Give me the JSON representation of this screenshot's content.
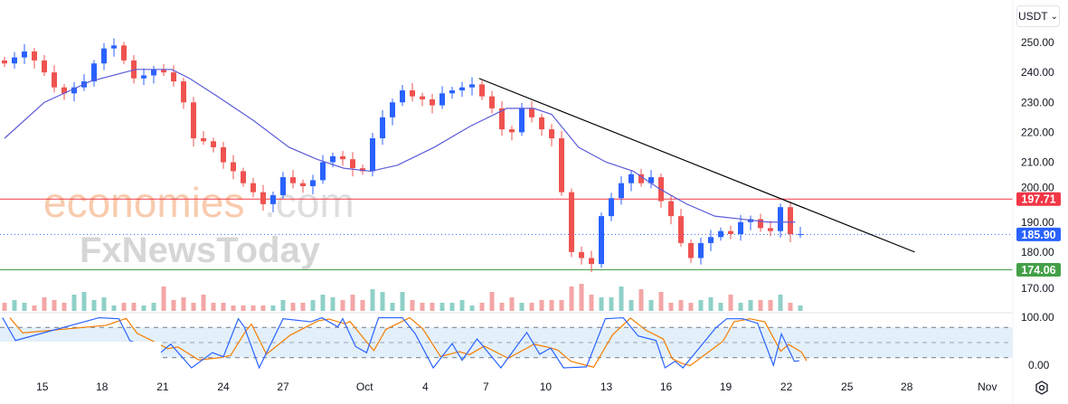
{
  "currency_selector": {
    "label": "USDT",
    "chevron": "⌄"
  },
  "watermark": {
    "part1": "economies",
    "part2": ".com",
    "part3": "FxNewsToday"
  },
  "price_tags": {
    "resistance": {
      "value": "197.71",
      "color": "#f23645"
    },
    "current": {
      "value": "185.90",
      "color": "#2962ff"
    },
    "support": {
      "value": "174.06",
      "color": "#43a047"
    }
  },
  "colors": {
    "up": "#2962ff",
    "down": "#ef5350",
    "ma": "#5b5bd9",
    "trendline": "#000000",
    "stoch_k": "#2962ff",
    "stoch_d": "#f57c00",
    "vol_up": "#8fd0c8",
    "vol_down": "#f3a6a6",
    "band": "#e3f0fb"
  },
  "chart_data": {
    "type": "candlestick",
    "price_axis": {
      "ticks": [
        "250.00",
        "240.00",
        "230.00",
        "220.00",
        "210.00",
        "200.00",
        "190.00",
        "180.00",
        "170.00"
      ],
      "values": [
        250,
        240,
        230,
        220,
        210,
        200,
        190,
        180,
        170
      ],
      "range": [
        170,
        250
      ]
    },
    "time_axis": {
      "ticks": [
        "15",
        "18",
        "21",
        "24",
        "27",
        "Oct",
        "4",
        "7",
        "10",
        "13",
        "16",
        "19",
        "22",
        "25",
        "28",
        "Nov"
      ],
      "tick_candle_index": [
        3.8,
        9.8,
        15.9,
        22,
        28,
        36.2,
        42.3,
        48.4,
        54.4,
        60.5,
        66.5,
        72.5,
        78.6,
        84.7,
        90.7,
        98.8
      ]
    },
    "closes": [
      243,
      245,
      247,
      244,
      240,
      235,
      233,
      235,
      237,
      243,
      248,
      249,
      244,
      238,
      239,
      241,
      240,
      237,
      230,
      218,
      217,
      215,
      210,
      207,
      203,
      200,
      196,
      199,
      205,
      203,
      202,
      204,
      210,
      212,
      211,
      208,
      207,
      218,
      225,
      230,
      234,
      232,
      231,
      229,
      233,
      234,
      235,
      236,
      232,
      228,
      221,
      220,
      228,
      225,
      221,
      218,
      200,
      180,
      178,
      176,
      192,
      198,
      203,
      206,
      203,
      205,
      197,
      192,
      183,
      178,
      183,
      185,
      187,
      186,
      190,
      191,
      188,
      187,
      195,
      186,
      186
    ],
    "volume": [
      3,
      4,
      3,
      2,
      5,
      4,
      3,
      6,
      7,
      4,
      5,
      2,
      3,
      3,
      2,
      3,
      9,
      4,
      5,
      3,
      6,
      3,
      3,
      2,
      2,
      2,
      2,
      2,
      4,
      3,
      3,
      4,
      6,
      5,
      4,
      6,
      4,
      8,
      7,
      3,
      7,
      4,
      3,
      3,
      3,
      3,
      4,
      2,
      3,
      7,
      3,
      5,
      3,
      3,
      4,
      4,
      4,
      9,
      10,
      6,
      5,
      5,
      9,
      4,
      8,
      4,
      7,
      3,
      4,
      3,
      4,
      5,
      3,
      6,
      3,
      4,
      4,
      4,
      6,
      3,
      2
    ],
    "moving_average": {
      "points": [
        [
          0,
          218
        ],
        [
          4,
          230
        ],
        [
          8.6,
          237
        ],
        [
          13.2,
          241
        ],
        [
          16.8,
          241
        ],
        [
          18.6,
          238
        ],
        [
          21.4,
          232
        ],
        [
          25,
          224
        ],
        [
          28.6,
          215
        ],
        [
          31.4,
          211
        ],
        [
          34.1,
          208
        ],
        [
          36.8,
          207
        ],
        [
          39.5,
          209
        ],
        [
          43.2,
          215
        ],
        [
          46.8,
          222
        ],
        [
          50.5,
          228
        ],
        [
          53.2,
          228
        ],
        [
          55,
          226
        ],
        [
          57.7,
          215
        ],
        [
          60.5,
          210
        ],
        [
          63.2,
          207
        ],
        [
          65.9,
          201
        ],
        [
          68.6,
          196
        ],
        [
          71.4,
          192
        ],
        [
          74.1,
          191
        ],
        [
          76.8,
          190
        ],
        [
          79.5,
          190
        ]
      ]
    },
    "trendline": {
      "start": [
        47.7,
        238
      ],
      "end": [
        91.5,
        180
      ]
    },
    "horizontal_levels": [
      197.71,
      185.9,
      174.06
    ],
    "stochastic": {
      "axis_ticks": [
        "100.00",
        "0.00"
      ],
      "bands": [
        80,
        50,
        20
      ],
      "k": [
        [
          -0.2,
          99
        ],
        [
          1.1,
          54
        ],
        [
          9.5,
          99
        ],
        [
          11.5,
          97
        ],
        [
          12.6,
          54
        ],
        [
          15.7,
          30
        ],
        [
          16.7,
          47
        ],
        [
          18.8,
          0
        ],
        [
          20.9,
          30
        ],
        [
          22,
          22
        ],
        [
          23.5,
          97
        ],
        [
          24.1,
          81
        ],
        [
          25.6,
          0
        ],
        [
          28,
          97
        ],
        [
          30.8,
          91
        ],
        [
          31.9,
          99
        ],
        [
          33.5,
          81
        ],
        [
          34,
          97
        ],
        [
          35.3,
          42
        ],
        [
          36.4,
          30
        ],
        [
          37.6,
          99
        ],
        [
          40,
          99
        ],
        [
          41.3,
          67
        ],
        [
          43.1,
          0
        ],
        [
          45,
          48
        ],
        [
          46,
          15
        ],
        [
          47.5,
          57
        ],
        [
          49.9,
          0
        ],
        [
          52.5,
          70
        ],
        [
          53.8,
          27
        ],
        [
          54.9,
          39
        ],
        [
          56.2,
          0
        ],
        [
          58.5,
          2
        ],
        [
          60.4,
          97
        ],
        [
          62.2,
          99
        ],
        [
          63.7,
          63
        ],
        [
          65.5,
          54
        ],
        [
          66.4,
          0
        ],
        [
          67.4,
          13
        ],
        [
          68.2,
          0
        ],
        [
          71.5,
          79
        ],
        [
          72.6,
          97
        ],
        [
          74.2,
          97
        ],
        [
          75.7,
          88
        ],
        [
          77.3,
          5
        ],
        [
          78.1,
          67
        ],
        [
          79.4,
          13
        ],
        [
          79.9,
          14
        ]
      ]
    }
  }
}
